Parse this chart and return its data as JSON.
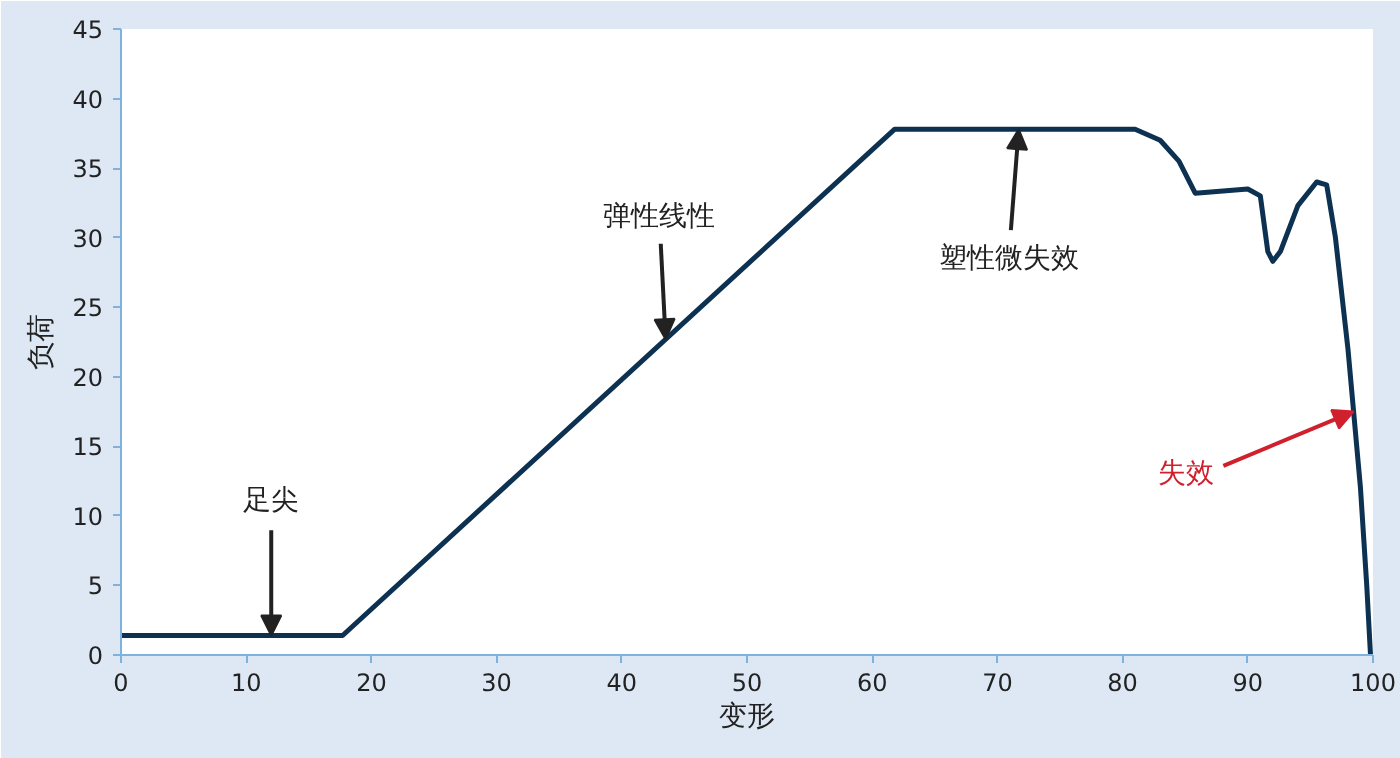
{
  "chart_data": {
    "type": "line",
    "xlabel": "变形",
    "ylabel": "负荷",
    "x": [
      0,
      17.7,
      61.8,
      81,
      83,
      84.5,
      85.8,
      90,
      91,
      91.6,
      92,
      92.6,
      94,
      95.5,
      96.3,
      97,
      98,
      99,
      99.5,
      99.8
    ],
    "series": [
      {
        "color": "#0d3150",
        "values": [
          1.4,
          1.4,
          37.8,
          37.8,
          37,
          35.5,
          33.2,
          33.5,
          33,
          29,
          28.3,
          29,
          32.3,
          34,
          33.8,
          30,
          22,
          12,
          5,
          0
        ]
      }
    ],
    "xlim": [
      0,
      100
    ],
    "ylim": [
      0,
      45
    ],
    "xticks": [
      0,
      10,
      20,
      30,
      40,
      50,
      60,
      70,
      80,
      90,
      100
    ],
    "yticks": [
      0,
      5,
      10,
      15,
      20,
      25,
      30,
      35,
      40,
      45
    ],
    "grid": false,
    "marker": "none",
    "line_style": "solid",
    "annotations": [
      {
        "text": "足尖",
        "x": 12,
        "y": 1.4
      },
      {
        "text": "弹性线性",
        "x": 43.5,
        "y": 22.7
      },
      {
        "text": "塑性微失效",
        "x": 71.7,
        "y": 37.8
      },
      {
        "text": "失效",
        "x": 98.45,
        "y": 17.5
      }
    ]
  }
}
